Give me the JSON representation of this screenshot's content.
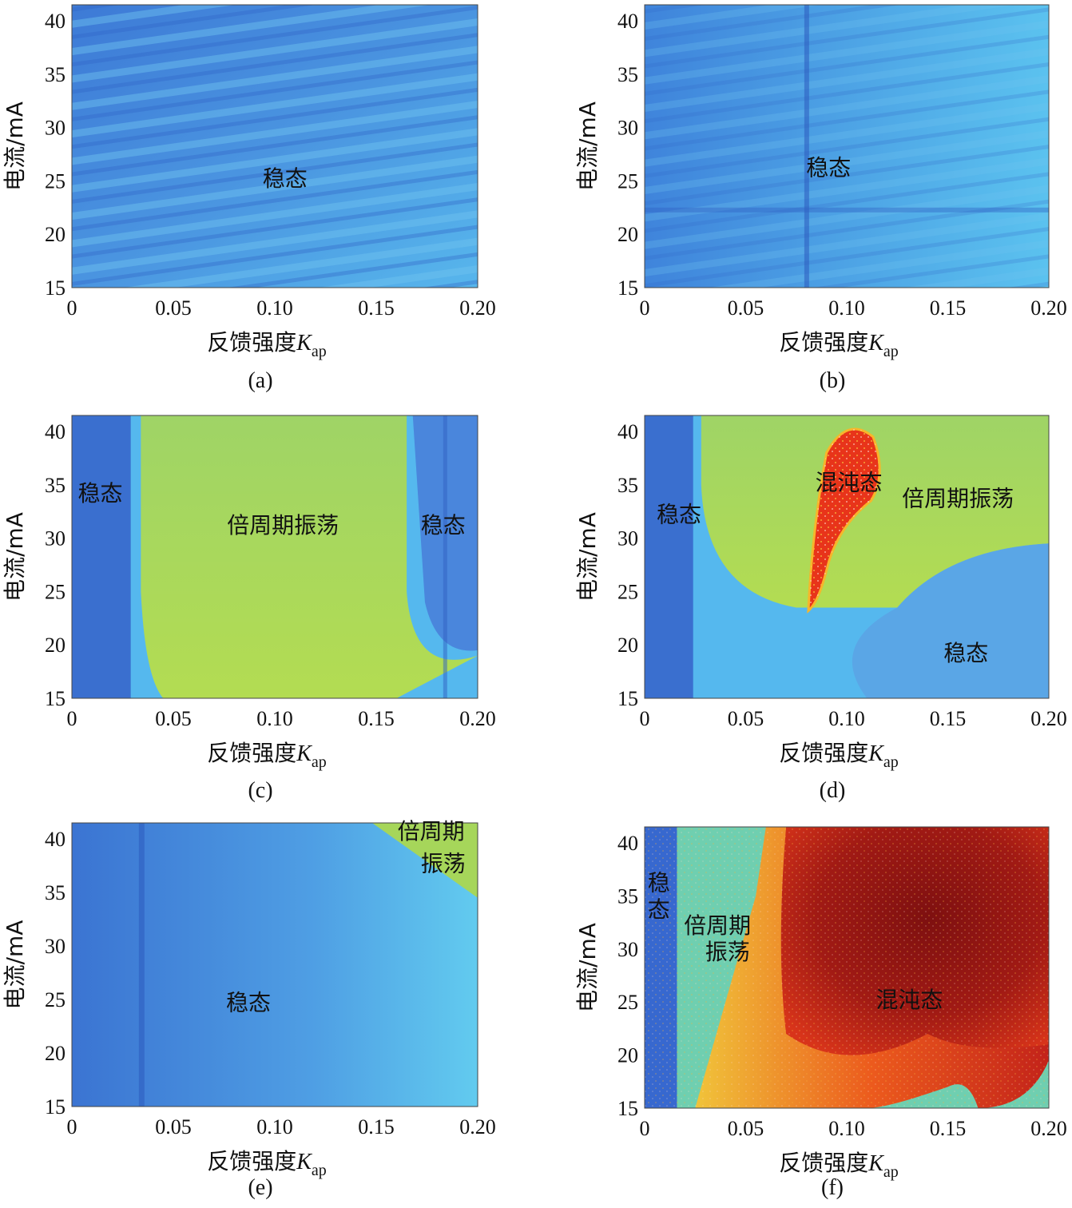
{
  "chart_data": [
    {
      "type": "heatmap",
      "caption": "(a)",
      "xlabel": "反馈强度",
      "xlabel_symbol": "K",
      "xlabel_subscript": "ap",
      "ylabel": "电流/mA",
      "xlim": [
        0,
        0.2
      ],
      "ylim": [
        15,
        41.5
      ],
      "xticks": [
        "0",
        "0.05",
        "0.10",
        "0.15",
        "0.20"
      ],
      "yticks": [
        "15",
        "20",
        "25",
        "30",
        "35",
        "40"
      ],
      "regions": [
        {
          "label": "稳态",
          "state": "steady",
          "x": 0.105,
          "y": 24.5
        }
      ]
    },
    {
      "type": "heatmap",
      "caption": "(b)",
      "xlabel": "反馈强度",
      "xlabel_symbol": "K",
      "xlabel_subscript": "ap",
      "ylabel": "电流/mA",
      "xlim": [
        0,
        0.2
      ],
      "ylim": [
        15,
        41.5
      ],
      "xticks": [
        "0",
        "0.05",
        "0.10",
        "0.15",
        "0.20"
      ],
      "yticks": [
        "15",
        "20",
        "25",
        "30",
        "35",
        "40"
      ],
      "regions": [
        {
          "label": "稳态",
          "state": "steady",
          "x": 0.091,
          "y": 25.5
        }
      ]
    },
    {
      "type": "heatmap",
      "caption": "(c)",
      "xlabel": "反馈强度",
      "xlabel_symbol": "K",
      "xlabel_subscript": "ap",
      "ylabel": "电流/mA",
      "xlim": [
        0,
        0.2
      ],
      "ylim": [
        15,
        41.5
      ],
      "xticks": [
        "0",
        "0.05",
        "0.10",
        "0.15",
        "0.20"
      ],
      "yticks": [
        "15",
        "20",
        "25",
        "30",
        "35",
        "40"
      ],
      "regions": [
        {
          "label": "稳态",
          "state": "steady",
          "x": 0.014,
          "y": 33.5
        },
        {
          "label": "倍周期振荡",
          "state": "period-doubling",
          "x": 0.104,
          "y": 30.5
        },
        {
          "label": "稳态",
          "state": "steady",
          "x": 0.183,
          "y": 30.5
        }
      ]
    },
    {
      "type": "heatmap",
      "caption": "(d)",
      "xlabel": "反馈强度",
      "xlabel_symbol": "K",
      "xlabel_subscript": "ap",
      "ylabel": "电流/mA",
      "xlim": [
        0,
        0.2
      ],
      "ylim": [
        15,
        41.5
      ],
      "xticks": [
        "0",
        "0.05",
        "0.10",
        "0.15",
        "0.20"
      ],
      "yticks": [
        "15",
        "20",
        "25",
        "30",
        "35",
        "40"
      ],
      "regions": [
        {
          "label": "稳态",
          "state": "steady",
          "x": 0.017,
          "y": 31.5
        },
        {
          "label": "混沌态",
          "state": "chaos",
          "x": 0.101,
          "y": 34.5
        },
        {
          "label": "倍周期振荡",
          "state": "period-doubling",
          "x": 0.155,
          "y": 33.0
        },
        {
          "label": "稳态",
          "state": "steady",
          "x": 0.159,
          "y": 18.5
        }
      ]
    },
    {
      "type": "heatmap",
      "caption": "(e)",
      "xlabel": "反馈强度",
      "xlabel_symbol": "K",
      "xlabel_subscript": "ap",
      "ylabel": "电流/mA",
      "xlim": [
        0,
        0.2
      ],
      "ylim": [
        15,
        41.5
      ],
      "xticks": [
        "0",
        "0.05",
        "0.10",
        "0.15",
        "0.20"
      ],
      "yticks": [
        "15",
        "20",
        "25",
        "30",
        "35",
        "40"
      ],
      "regions": [
        {
          "label": "稳态",
          "state": "steady",
          "x": 0.087,
          "y": 24.0
        },
        {
          "label": "倍周期",
          "state": "period-doubling",
          "x": 0.177,
          "y": 40.0
        },
        {
          "label": "振荡",
          "state": "period-doubling",
          "x": 0.183,
          "y": 37.0
        }
      ]
    },
    {
      "type": "heatmap",
      "caption": "(f)",
      "xlabel": "反馈强度",
      "xlabel_symbol": "K",
      "xlabel_subscript": "ap",
      "ylabel": "电流/mA",
      "xlim": [
        0,
        0.2
      ],
      "ylim": [
        15,
        41.5
      ],
      "xticks": [
        "0",
        "0.05",
        "0.10",
        "0.15",
        "0.20"
      ],
      "yticks": [
        "15",
        "20",
        "25",
        "30",
        "35",
        "40"
      ],
      "regions": [
        {
          "label": "稳",
          "state": "steady",
          "x": 0.007,
          "y": 35.5
        },
        {
          "label": "态",
          "state": "steady",
          "x": 0.007,
          "y": 33.0
        },
        {
          "label": "倍周期",
          "state": "period-doubling",
          "x": 0.036,
          "y": 31.5
        },
        {
          "label": "振荡",
          "state": "period-doubling",
          "x": 0.041,
          "y": 29.0
        },
        {
          "label": "混沌态",
          "state": "chaos",
          "x": 0.131,
          "y": 24.5
        }
      ]
    }
  ],
  "colors": {
    "steady": "#3b78d8",
    "steady_light": "#55b8ee",
    "period_doubling": "#a6d65a",
    "period_doubling_edge": "#6fcfb0",
    "chaos": "#e8341a",
    "chaos_dark": "#8a1412",
    "chaos_edge": "#f7b62a"
  }
}
